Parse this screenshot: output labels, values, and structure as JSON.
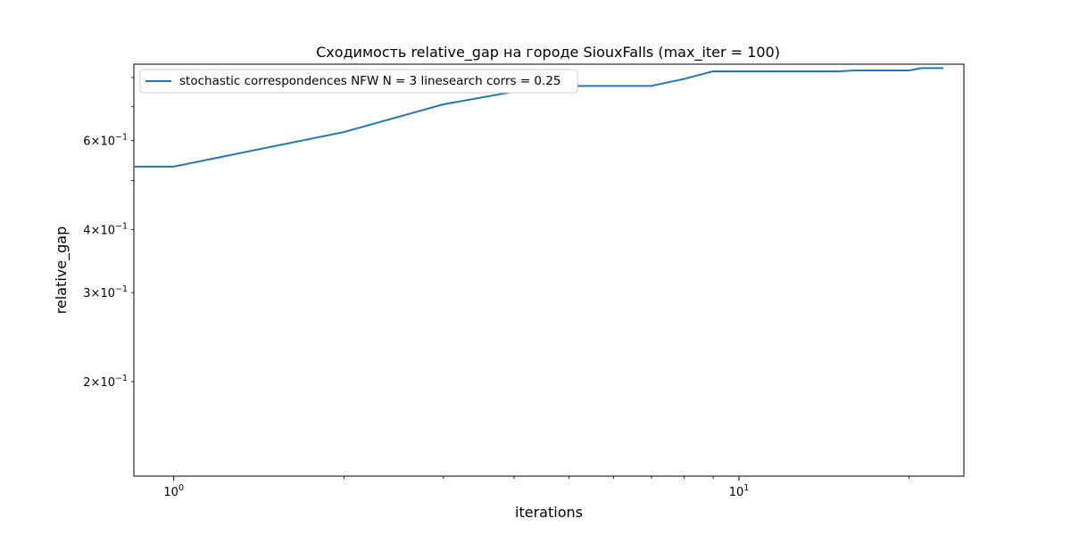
{
  "chart_data": {
    "type": "line",
    "title": "Сходимость relative_gap на городе SiouxFalls  (max_iter = 100)",
    "xlabel": "iterations",
    "ylabel": "relative_gap",
    "x_scale": "log",
    "y_scale": "log",
    "xlim": [
      0.85,
      25
    ],
    "ylim": [
      0.13,
      0.85
    ],
    "grid": false,
    "legend_position": "top-left",
    "x_major_ticks": [
      {
        "value": 1,
        "base": "10",
        "exp": "0"
      },
      {
        "value": 10,
        "base": "10",
        "exp": "1"
      }
    ],
    "x_minor_ticks": [
      2,
      3,
      4,
      5,
      6,
      7,
      8,
      9,
      20
    ],
    "y_labeled_ticks": [
      {
        "value": 0.6,
        "mant": "6",
        "times": "×",
        "base": "10",
        "exp": "−1"
      },
      {
        "value": 0.4,
        "mant": "4",
        "times": "×",
        "base": "10",
        "exp": "−1"
      },
      {
        "value": 0.3,
        "mant": "3",
        "times": "×",
        "base": "10",
        "exp": "−1"
      },
      {
        "value": 0.2,
        "mant": "2",
        "times": "×",
        "base": "10",
        "exp": "−1"
      }
    ],
    "y_minor_ticks": [
      0.5,
      0.7,
      0.8
    ],
    "series": [
      {
        "name": "stochastic correspondences NFW N = 3 linesearch corrs = 0.25",
        "color": "#1f77b4",
        "x": [
          0.85,
          1,
          2,
          3,
          4,
          5,
          6,
          7,
          8,
          9,
          10,
          11,
          12,
          13,
          14,
          15,
          16,
          17,
          18,
          19,
          20,
          21,
          22,
          23
        ],
        "y": [
          0.533,
          0.533,
          0.624,
          0.708,
          0.75,
          0.77,
          0.77,
          0.77,
          0.795,
          0.823,
          0.823,
          0.823,
          0.823,
          0.823,
          0.823,
          0.823,
          0.826,
          0.826,
          0.826,
          0.826,
          0.826,
          0.835,
          0.835,
          0.835
        ]
      }
    ]
  }
}
